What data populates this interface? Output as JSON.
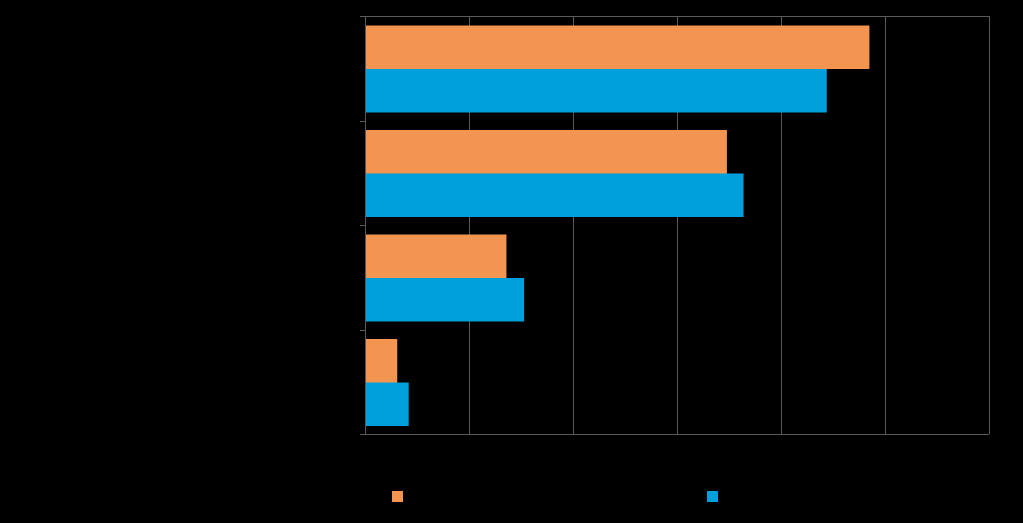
{
  "chart_data": {
    "type": "bar",
    "orientation": "horizontal",
    "title": "",
    "xlabel": "",
    "ylabel": "",
    "categories": [
      "",
      "",
      "",
      ""
    ],
    "xlim": [
      0,
      60
    ],
    "grid": true,
    "legend_position": "bottom",
    "series": [
      {
        "color": "#F39551",
        "values": [
          48.5,
          34.8,
          13.6,
          3.1
        ]
      },
      {
        "color": "#00A0DC",
        "values": [
          44.4,
          36.4,
          15.3,
          4.2
        ]
      }
    ]
  },
  "colors": {
    "background": "#000000",
    "axis": "#595959",
    "grid": "#595959"
  }
}
